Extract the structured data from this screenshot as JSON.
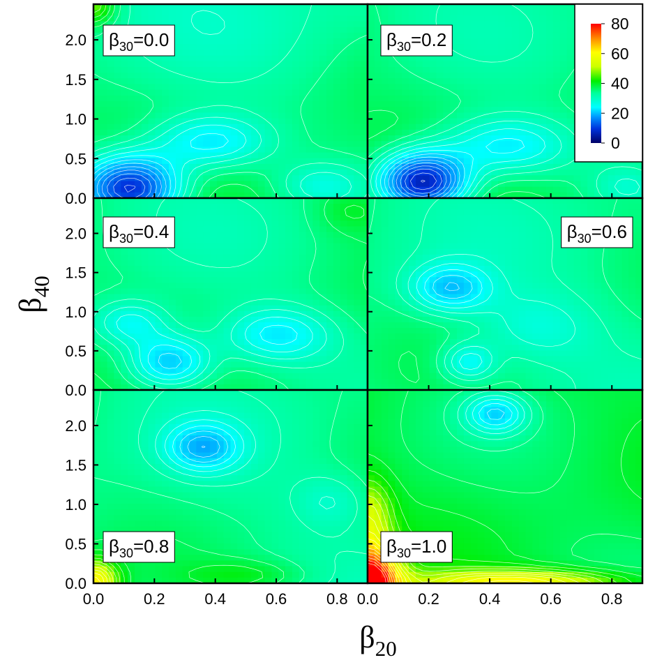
{
  "chart_data": {
    "type": "heatmap",
    "subtype": "contour",
    "x_axis": {
      "symbol": "β",
      "subscript": "20",
      "range": [
        0.0,
        0.9
      ],
      "tick_values": [
        0.0,
        0.2,
        0.4,
        0.6,
        0.8
      ],
      "tick_labels_left": [
        "0.0",
        "0.2",
        "0.4",
        "0.6",
        "0.8"
      ],
      "tick_labels_right": [
        "0.0",
        "0.2",
        "0.4",
        "0.6",
        "0.8"
      ]
    },
    "y_axis": {
      "symbol": "β",
      "subscript": "40",
      "range": [
        0.0,
        2.45
      ],
      "tick_values": [
        0.0,
        0.5,
        1.0,
        1.5,
        2.0
      ],
      "tick_labels": [
        "0.0",
        "0.5",
        "1.0",
        "1.5",
        "2.0"
      ]
    },
    "colorbar": {
      "range": [
        0,
        80
      ],
      "tick_values": [
        0,
        20,
        40,
        60,
        80
      ],
      "tick_labels": [
        "0",
        "20",
        "40",
        "60",
        "80"
      ],
      "colors": [
        "#000066",
        "#0033dd",
        "#0099ff",
        "#00ffff",
        "#00ff99",
        "#00ee00",
        "#ccff00",
        "#ffff00",
        "#ff8800",
        "#ff0000"
      ]
    },
    "panels": [
      {
        "label_symbol": "β",
        "label_sub": "30",
        "label_value": "=0.0",
        "base": 40,
        "tilt": -6,
        "features": [
          {
            "x": 0.12,
            "y": 0.12,
            "depth": -34,
            "sx": 0.17,
            "sy": 0.42
          },
          {
            "x": 0.38,
            "y": 0.7,
            "depth": -14,
            "sx": 0.2,
            "sy": 0.35
          },
          {
            "x": 0.75,
            "y": 0.15,
            "depth": -8,
            "sx": 0.15,
            "sy": 0.3
          },
          {
            "x": 0.0,
            "y": 2.45,
            "depth": 14,
            "sx": 0.07,
            "sy": 0.25
          }
        ]
      },
      {
        "label_symbol": "β",
        "label_sub": "30",
        "label_value": "=0.2",
        "base": 40,
        "tilt": -4,
        "features": [
          {
            "x": 0.18,
            "y": 0.2,
            "depth": -36,
            "sx": 0.15,
            "sy": 0.38
          },
          {
            "x": 0.45,
            "y": 0.65,
            "depth": -14,
            "sx": 0.22,
            "sy": 0.38
          },
          {
            "x": 0.85,
            "y": 0.15,
            "depth": -6,
            "sx": 0.12,
            "sy": 0.3
          }
        ]
      },
      {
        "label_symbol": "β",
        "label_sub": "30",
        "label_value": "=0.4",
        "base": 38,
        "tilt": -2,
        "features": [
          {
            "x": 0.25,
            "y": 0.35,
            "depth": -18,
            "sx": 0.14,
            "sy": 0.35
          },
          {
            "x": 0.12,
            "y": 0.85,
            "depth": -11,
            "sx": 0.13,
            "sy": 0.3
          },
          {
            "x": 0.6,
            "y": 0.7,
            "depth": -12,
            "sx": 0.18,
            "sy": 0.35
          },
          {
            "x": 0.85,
            "y": 2.3,
            "depth": 5,
            "sx": 0.12,
            "sy": 0.3
          }
        ]
      },
      {
        "label_symbol": "β",
        "label_sub": "30",
        "label_value": "=0.6",
        "base": 36,
        "tilt": 0,
        "features": [
          {
            "x": 0.27,
            "y": 1.3,
            "depth": -14,
            "sx": 0.13,
            "sy": 0.3
          },
          {
            "x": 0.33,
            "y": 0.35,
            "depth": -11,
            "sx": 0.09,
            "sy": 0.25
          },
          {
            "x": 0.55,
            "y": 0.8,
            "depth": -6,
            "sx": 0.2,
            "sy": 0.45
          }
        ]
      },
      {
        "label_symbol": "β",
        "label_sub": "30",
        "label_value": "=0.8",
        "base": 36,
        "tilt": 0,
        "features": [
          {
            "x": 0.36,
            "y": 1.72,
            "depth": -14,
            "sx": 0.12,
            "sy": 0.3
          },
          {
            "x": 0.0,
            "y": 0.0,
            "depth": 26,
            "sx": 0.08,
            "sy": 0.3
          },
          {
            "x": 0.78,
            "y": 1.05,
            "depth": -5,
            "sx": 0.12,
            "sy": 0.35
          },
          {
            "x": 0.5,
            "y": 0.1,
            "depth": 6,
            "sx": 0.2,
            "sy": 0.2
          }
        ]
      },
      {
        "label_symbol": "β",
        "label_sub": "30",
        "label_value": "=1.0",
        "base": 40,
        "tilt": 0,
        "features": [
          {
            "x": 0.42,
            "y": 2.15,
            "depth": -14,
            "sx": 0.1,
            "sy": 0.25
          },
          {
            "x": 0.0,
            "y": 0.0,
            "depth": 46,
            "sx": 0.1,
            "sy": 0.45
          },
          {
            "x": 0.5,
            "y": 0.0,
            "depth": 22,
            "sx": 0.35,
            "sy": 0.17
          },
          {
            "x": 0.0,
            "y": 0.85,
            "depth": 14,
            "sx": 0.08,
            "sy": 0.5
          }
        ]
      }
    ]
  }
}
